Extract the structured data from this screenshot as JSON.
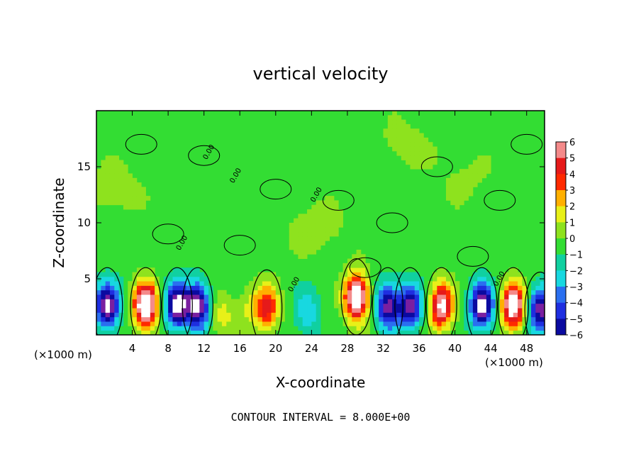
{
  "chart_data": {
    "type": "heatmap",
    "title": "vertical velocity",
    "xlabel": "X-coordinate",
    "ylabel": "Z-coordinate",
    "x_unit_left": "(×1000 m)",
    "x_unit_right": "(×1000 m)",
    "xlim": [
      0,
      50
    ],
    "ylim": [
      0,
      20
    ],
    "x_ticks": [
      4,
      8,
      12,
      16,
      20,
      24,
      28,
      32,
      36,
      40,
      44,
      48
    ],
    "y_ticks": [
      5,
      10,
      15
    ],
    "colorbar": {
      "range": [
        -6,
        6
      ],
      "levels": [
        6,
        5,
        4,
        3,
        2,
        1,
        0,
        -1,
        -2,
        -3,
        -4,
        -5,
        -6
      ],
      "tick_labels": [
        "6",
        "5",
        "4",
        "3",
        "2",
        "1",
        "0",
        "−1",
        "−2",
        "−3",
        "−4",
        "−5",
        "−6"
      ]
    },
    "footer": "CONTOUR INTERVAL = 8.000E+00",
    "contour_label": "0.00",
    "features": [
      {
        "x": 1.2,
        "z": 2.6,
        "w": -7
      },
      {
        "x": 5.5,
        "z": 2.6,
        "w": 9
      },
      {
        "x": 9.0,
        "z": 2.6,
        "w": -7
      },
      {
        "x": 11.3,
        "z": 2.6,
        "w": -7
      },
      {
        "x": 14.0,
        "z": 1.8,
        "w": 2
      },
      {
        "x": 17.0,
        "z": 2.5,
        "w": 1.5
      },
      {
        "x": 19.0,
        "z": 2.4,
        "w": 5
      },
      {
        "x": 23.5,
        "z": 2.0,
        "w": -2.5
      },
      {
        "x": 29.0,
        "z": 3.4,
        "w": 9
      },
      {
        "x": 32.5,
        "z": 2.6,
        "w": -6
      },
      {
        "x": 35.0,
        "z": 2.6,
        "w": -6
      },
      {
        "x": 38.5,
        "z": 2.6,
        "w": 7
      },
      {
        "x": 43.0,
        "z": 2.6,
        "w": -7
      },
      {
        "x": 46.5,
        "z": 2.6,
        "w": 8
      },
      {
        "x": 49.5,
        "z": 2.2,
        "w": -6
      },
      {
        "x": 2.0,
        "z": 13.0,
        "w": 1.2
      },
      {
        "x": 24.5,
        "z": 9.5,
        "w": 1.3
      },
      {
        "x": 34.5,
        "z": 17.0,
        "w": 1.0
      },
      {
        "x": 41.0,
        "z": 14.0,
        "w": 0.8
      }
    ],
    "legend_position": "right"
  }
}
